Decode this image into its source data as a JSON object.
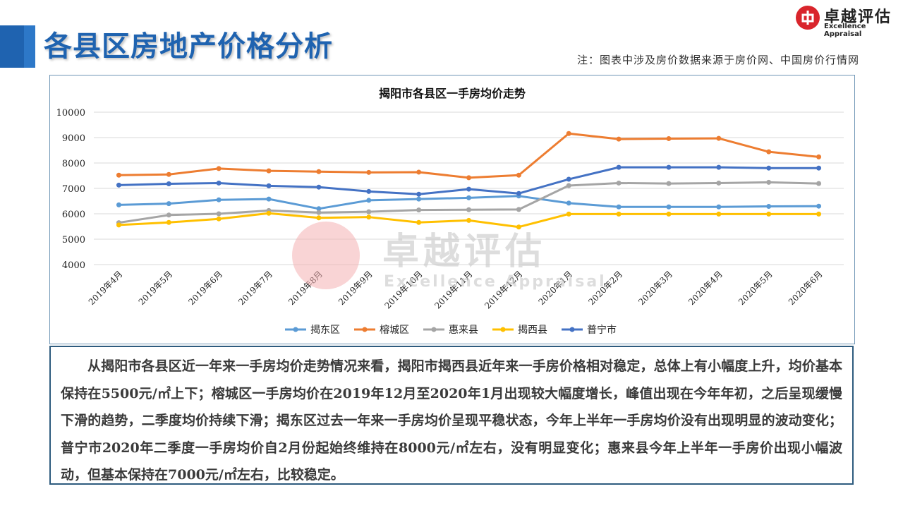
{
  "header": {
    "title": "各县区房地产价格分析",
    "note": "注：图表中涉及房价数据来源于房价网、中国房价行情网"
  },
  "logo": {
    "cn": "卓越评估",
    "en": "Excellence Appraisal"
  },
  "watermark": {
    "cn": "卓越评估",
    "en": "Excellence Appraisal"
  },
  "chart_data": {
    "type": "line",
    "title": "揭阳市各县区一手房均价走势",
    "categories": [
      "2019年4月",
      "2019年5月",
      "2019年6月",
      "2019年7月",
      "2019年8月",
      "2019年9月",
      "2019年10月",
      "2019年11月",
      "2019年12月",
      "2020年1月",
      "2020年2月",
      "2020年3月",
      "2020年4月",
      "2020年5月",
      "2020年6月"
    ],
    "ylim": [
      4000,
      10000
    ],
    "yticks": [
      4000,
      5000,
      6000,
      7000,
      8000,
      9000,
      10000
    ],
    "grid": true,
    "legend_position": "bottom",
    "series": [
      {
        "name": "揭东区",
        "color": "#5b9bd5",
        "values": [
          6350,
          6400,
          6550,
          6580,
          6200,
          6530,
          6580,
          6630,
          6700,
          6420,
          6270,
          6270,
          6270,
          6290,
          6300
        ]
      },
      {
        "name": "榕城区",
        "color": "#ed7d31",
        "values": [
          7520,
          7550,
          7780,
          7690,
          7660,
          7630,
          7640,
          7420,
          7520,
          9160,
          8940,
          8960,
          8970,
          8440,
          8240
        ]
      },
      {
        "name": "惠来县",
        "color": "#a5a5a5",
        "values": [
          5650,
          5950,
          6000,
          6130,
          6050,
          6080,
          6150,
          6160,
          6170,
          7110,
          7210,
          7190,
          7210,
          7240,
          7190
        ]
      },
      {
        "name": "揭西县",
        "color": "#ffc000",
        "values": [
          5560,
          5660,
          5800,
          6020,
          5840,
          5870,
          5660,
          5740,
          5480,
          5990,
          5990,
          5990,
          5990,
          5990,
          5990
        ]
      },
      {
        "name": "普宁市",
        "color": "#4472c4",
        "values": [
          7130,
          7180,
          7210,
          7100,
          7050,
          6880,
          6770,
          6970,
          6800,
          7360,
          7830,
          7830,
          7830,
          7800,
          7800
        ]
      }
    ]
  },
  "analysis": {
    "text": "从揭阳市各县区近一年来一手房均价走势情况来看，揭阳市揭西县近年来一手房价格相对稳定，总体上有小幅度上升，均价基本保持在5500元/㎡上下；榕城区一手房均价在2019年12月至2020年1月出现较大幅度增长，峰值出现在今年年初，之后呈现缓慢下滑的趋势，二季度均价持续下滑；揭东区过去一年来一手房均价呈现平稳状态，今年上半年一手房均价没有出现明显的波动变化；普宁市2020年二季度一手房均价自2月份起始终维持在8000元/㎡左右，没有明显变化；惠来县今年上半年一手房价出现小幅波动，但基本保持在7000元/㎡左右，比较稳定。"
  }
}
